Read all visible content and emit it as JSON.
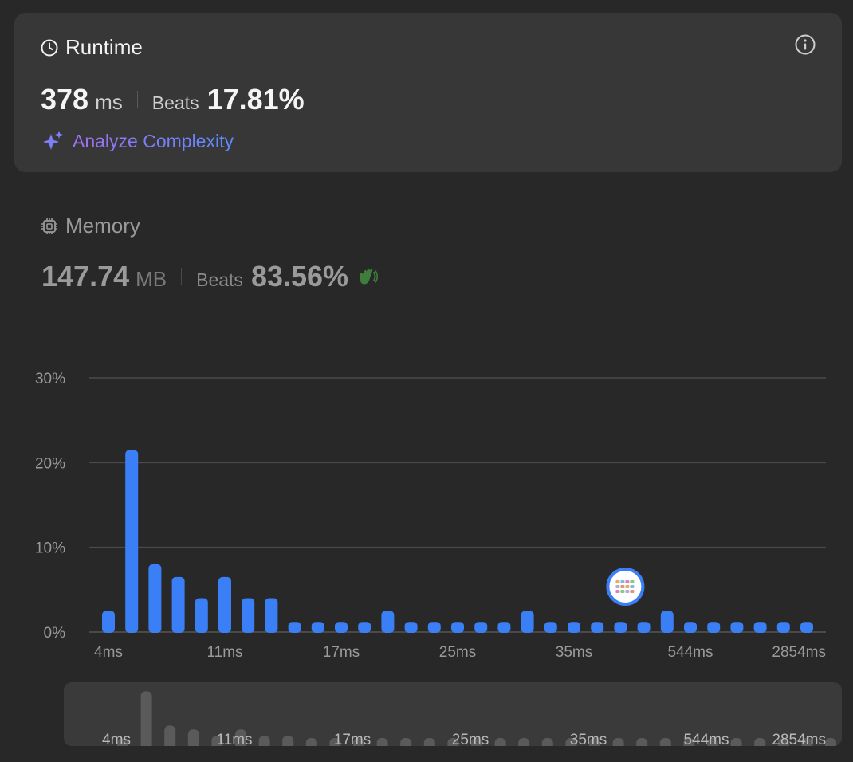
{
  "runtime": {
    "title": "Runtime",
    "value": "378",
    "unit": "ms",
    "beats_label": "Beats",
    "beats_value": "17.81%",
    "analyze_label": "Analyze Complexity"
  },
  "memory": {
    "title": "Memory",
    "value": "147.74",
    "unit": "MB",
    "beats_label": "Beats",
    "beats_value": "83.56%"
  },
  "colors": {
    "bar": "#3a7ff6",
    "mini_bar": "#5a5a5a",
    "grid": "#4a4a4a",
    "accent_purple": "#a070f0",
    "accent_blue": "#5a8cff"
  },
  "chart_data": {
    "type": "bar",
    "y_ticks": [
      "30%",
      "20%",
      "10%",
      "0%"
    ],
    "ylim": [
      0,
      30
    ],
    "x_tick_labels": [
      "4ms",
      "11ms",
      "17ms",
      "25ms",
      "35ms",
      "544ms",
      "2854ms"
    ],
    "x_tick_indices": [
      0,
      5,
      10,
      15,
      20,
      25,
      31
    ],
    "values": [
      2.5,
      21.5,
      8,
      6.5,
      4,
      6.5,
      4,
      4,
      1.2,
      1.2,
      1.2,
      1.2,
      2.5,
      1.2,
      1.2,
      1.2,
      1.2,
      1.2,
      2.5,
      1.2,
      1.2,
      1.2,
      1.2,
      1.2,
      2.5,
      1.2,
      1.2,
      1.2,
      1.2,
      1.2,
      1.2
    ],
    "marker_index": 22
  },
  "mini_chart": {
    "x_tick_labels": [
      "4ms",
      "11ms",
      "17ms",
      "25ms",
      "35ms",
      "544ms",
      "2854ms"
    ]
  }
}
